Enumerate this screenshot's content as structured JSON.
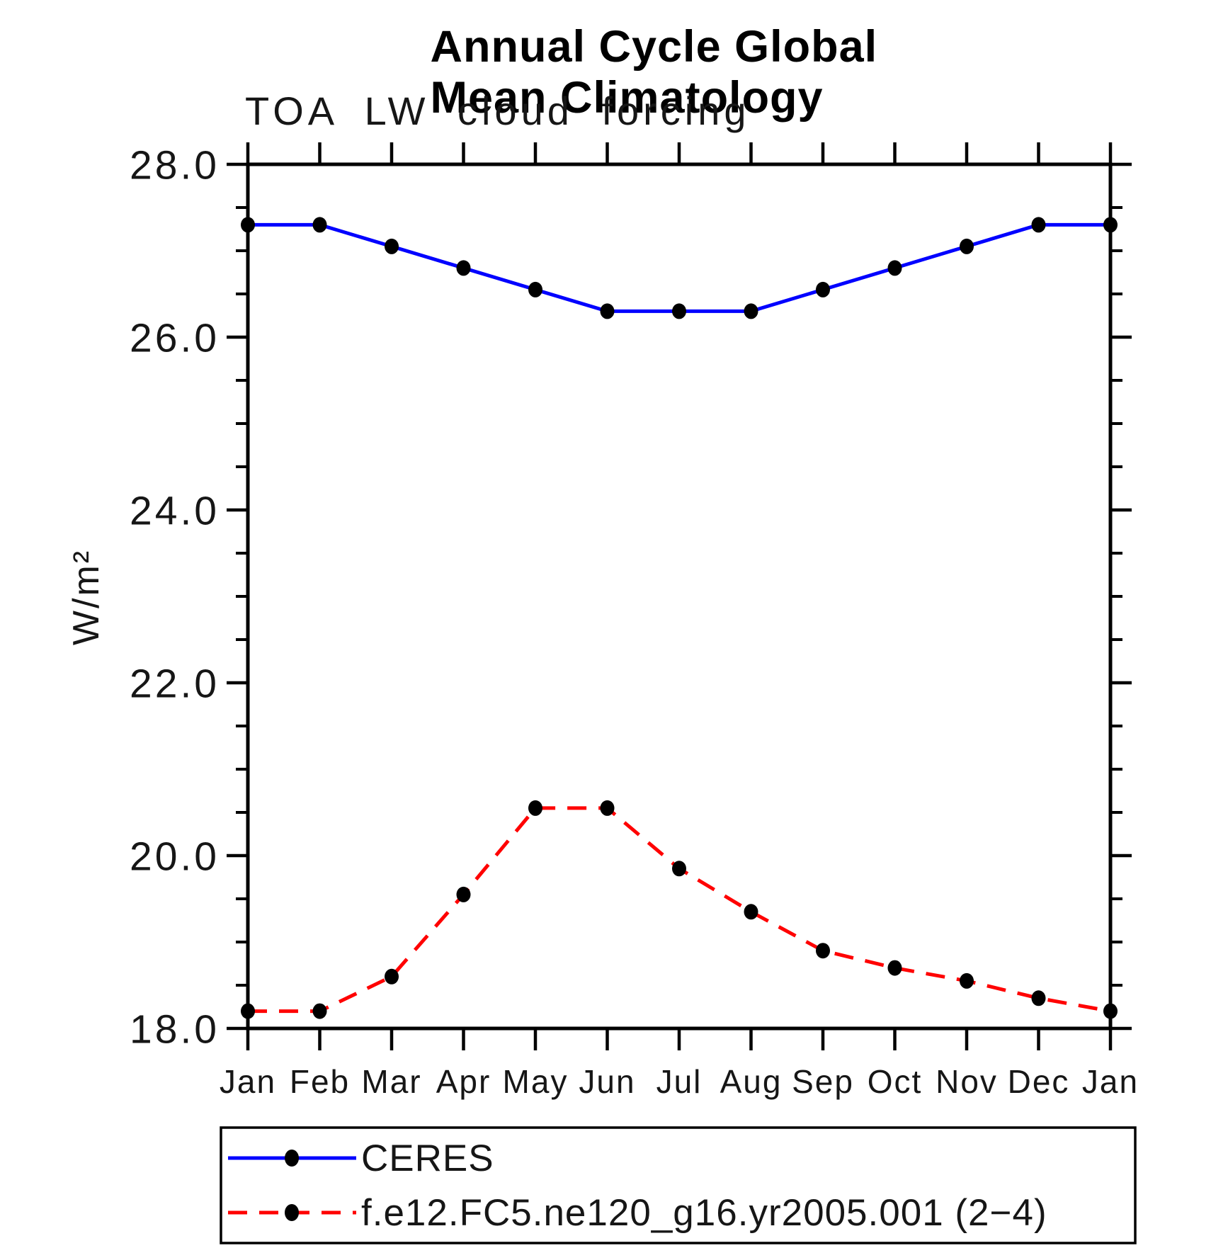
{
  "chart_data": {
    "type": "line",
    "title": "Annual Cycle Global Mean Climatology",
    "subtitle": "TOA LW cloud forcing",
    "ylabel": "W/m²",
    "categories": [
      "Jan",
      "Feb",
      "Mar",
      "Apr",
      "May",
      "Jun",
      "Jul",
      "Aug",
      "Sep",
      "Oct",
      "Nov",
      "Dec",
      "Jan"
    ],
    "y_axis": {
      "min": 18.0,
      "max": 28.0,
      "major_step": 2.0,
      "minor_step": 0.5,
      "tick_labels": [
        "18.0",
        "20.0",
        "22.0",
        "24.0",
        "26.0",
        "28.0"
      ]
    },
    "grid": false,
    "legend_position": "bottom",
    "axis_color": "#000000",
    "marker_color": "#000000",
    "series": [
      {
        "name": "CERES",
        "color": "#0000ff",
        "style": "solid",
        "marker": "circle",
        "values": [
          27.3,
          27.3,
          27.05,
          26.8,
          26.55,
          26.3,
          26.3,
          26.3,
          26.55,
          26.8,
          27.05,
          27.3,
          27.3
        ]
      },
      {
        "name": "f.e12.FC5.ne120_g16.yr2005.001 (2−4)",
        "color": "#ff0000",
        "style": "dashed",
        "marker": "circle",
        "values": [
          18.2,
          18.2,
          18.6,
          19.55,
          20.55,
          20.55,
          19.85,
          19.35,
          18.9,
          18.7,
          18.55,
          18.35,
          18.2
        ]
      }
    ]
  }
}
